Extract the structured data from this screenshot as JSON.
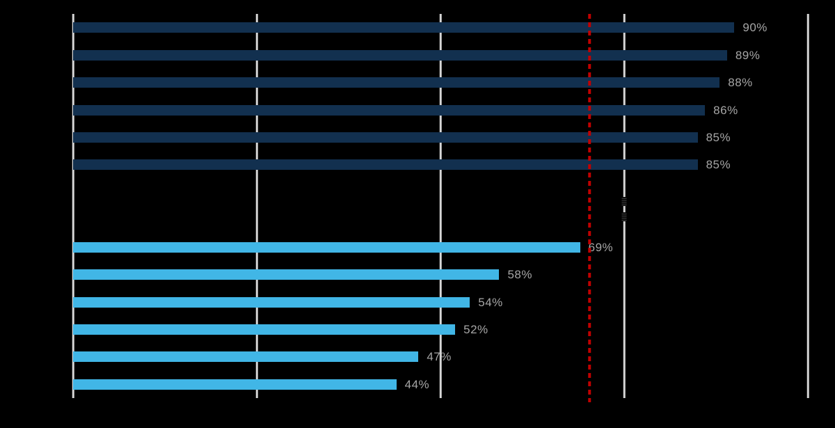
{
  "colors": {
    "background": "#000000",
    "gridline": "#D6D6D6",
    "value_label": "#A6A6A6",
    "navy": "#12304F",
    "blue": "#41B6E6",
    "reference_line": "#C00000"
  },
  "chart_data": {
    "type": "bar",
    "orientation": "horizontal",
    "x_axis": {
      "min": 0,
      "max": 100,
      "unit": "%",
      "gridlines_pct": [
        0,
        25,
        50,
        75,
        100
      ],
      "tick_labels_visible": false
    },
    "category_labels_visible": false,
    "slots_total": 14,
    "series": [
      {
        "name": "navy",
        "color": "#12304F",
        "values": [
          90,
          89,
          88,
          86,
          85,
          85
        ]
      },
      {
        "name": "blue",
        "color": "#41B6E6",
        "values": [
          69,
          58,
          54,
          52,
          47,
          44
        ]
      }
    ],
    "bars": [
      {
        "slot": 0,
        "value": 90,
        "label": "90%",
        "series": "navy"
      },
      {
        "slot": 1,
        "value": 89,
        "label": "89%",
        "series": "navy"
      },
      {
        "slot": 2,
        "value": 88,
        "label": "88%",
        "series": "navy"
      },
      {
        "slot": 3,
        "value": 86,
        "label": "86%",
        "series": "navy"
      },
      {
        "slot": 4,
        "value": 85,
        "label": "85%",
        "series": "navy"
      },
      {
        "slot": 5,
        "value": 85,
        "label": "85%",
        "series": "navy"
      },
      {
        "slot": 8,
        "value": 69,
        "label": "69%",
        "series": "blue"
      },
      {
        "slot": 9,
        "value": 58,
        "label": "58%",
        "series": "blue"
      },
      {
        "slot": 10,
        "value": 54,
        "label": "54%",
        "series": "blue"
      },
      {
        "slot": 11,
        "value": 52,
        "label": "52%",
        "series": "blue"
      },
      {
        "slot": 12,
        "value": 47,
        "label": "47%",
        "series": "blue"
      },
      {
        "slot": 13,
        "value": 44,
        "label": "44%",
        "series": "blue"
      }
    ],
    "reference_line": {
      "position_pct": 70.3,
      "style": "dashed",
      "color": "#C00000"
    },
    "legend_position": "none",
    "grid": true
  }
}
